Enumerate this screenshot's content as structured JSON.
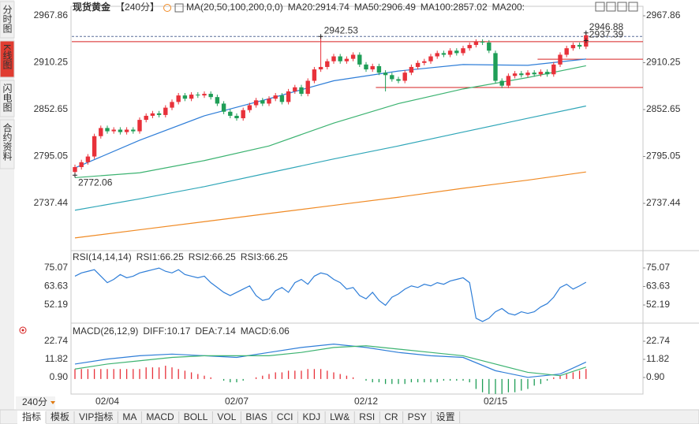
{
  "sidebar": {
    "tabs": [
      "分时图",
      "K线图",
      "闪电图",
      "合约资料"
    ],
    "active": 1
  },
  "toolbar": {
    "period": "240分",
    "tabs": [
      "指标",
      "模板",
      "VIP指标",
      "MA",
      "MACD",
      "BOLL",
      "VOL",
      "BIAS",
      "CCI",
      "KDJ",
      "LW&",
      "RSI",
      "CR",
      "PSY",
      "设置"
    ],
    "active": 0
  },
  "chart_data": [
    {
      "type": "candlestick",
      "title": "现货黄金",
      "subtitle": "【240分】",
      "indicator": "MA(20,50,100,200,0,0)",
      "categories": [
        null,
        null,
        null,
        null,
        null,
        "02/04",
        null,
        null,
        null,
        null,
        null,
        null,
        null,
        null,
        null,
        null,
        null,
        null,
        null,
        null,
        null,
        null,
        null,
        null,
        null,
        "02/07",
        null,
        null,
        null,
        null,
        null,
        null,
        null,
        null,
        null,
        null,
        null,
        null,
        null,
        null,
        null,
        null,
        null,
        null,
        null,
        "02/12",
        null,
        null,
        null,
        null,
        null,
        null,
        null,
        null,
        null,
        null,
        null,
        null,
        null,
        null,
        null,
        null,
        null,
        null,
        null,
        "02/15",
        null,
        null,
        null,
        null,
        null,
        null,
        null,
        null,
        null,
        null,
        null,
        null,
        null,
        null
      ],
      "open": [
        2776,
        2782,
        2788,
        2795,
        2820,
        2830,
        2826,
        2828,
        2825,
        2828,
        2826,
        2840,
        2845,
        2848,
        2846,
        2855,
        2862,
        2870,
        2866,
        2871,
        2870,
        2872,
        2868,
        2860,
        2850,
        2845,
        2842,
        2852,
        2858,
        2864,
        2860,
        2866,
        2870,
        2862,
        2875,
        2880,
        2872,
        2888,
        2902,
        2905,
        2912,
        2918,
        2912,
        2915,
        2920,
        2908,
        2902,
        2906,
        2898,
        2895,
        2890,
        2888,
        2898,
        2905,
        2910,
        2912,
        2918,
        2922,
        2920,
        2925,
        2922,
        2928,
        2932,
        2936,
        2935,
        2922,
        2888,
        2882,
        2894,
        2897,
        2895,
        2898,
        2896,
        2899,
        2896,
        2908,
        2920,
        2928,
        2932,
        2930
      ],
      "high": [
        2785,
        2791,
        2798,
        2823,
        2833,
        2833,
        2831,
        2831,
        2831,
        2831,
        2843,
        2848,
        2851,
        2851,
        2858,
        2865,
        2873,
        2873,
        2874,
        2874,
        2875,
        2875,
        2871,
        2863,
        2853,
        2848,
        2855,
        2861,
        2867,
        2867,
        2869,
        2873,
        2873,
        2878,
        2883,
        2883,
        2891,
        2905,
        2942.53,
        2915,
        2921,
        2921,
        2918,
        2923,
        2923,
        2911,
        2909,
        2909,
        2901,
        2898,
        2893,
        2901,
        2908,
        2913,
        2915,
        2921,
        2925,
        2925,
        2928,
        2928,
        2931,
        2935,
        2939,
        2939,
        2938,
        2925,
        2891,
        2897,
        2900,
        2900,
        2901,
        2901,
        2902,
        2902,
        2911,
        2923,
        2931,
        2935,
        2935,
        2946.88
      ],
      "low": [
        2772.06,
        2779,
        2785,
        2792,
        2817,
        2823,
        2823,
        2822,
        2822,
        2823,
        2823,
        2837,
        2842,
        2843,
        2843,
        2852,
        2859,
        2863,
        2863,
        2867,
        2867,
        2865,
        2857,
        2847,
        2842,
        2839,
        2839,
        2849,
        2855,
        2857,
        2857,
        2863,
        2859,
        2859,
        2872,
        2869,
        2869,
        2885,
        2899,
        2902,
        2909,
        2909,
        2909,
        2912,
        2905,
        2899,
        2899,
        2895,
        2875,
        2887,
        2885,
        2885,
        2895,
        2902,
        2907,
        2909,
        2915,
        2917,
        2917,
        2919,
        2919,
        2925,
        2929,
        2932,
        2922,
        2885,
        2879,
        2879,
        2891,
        2892,
        2892,
        2893,
        2893,
        2893,
        2893,
        2905,
        2917,
        2925,
        2927,
        2927
      ],
      "close": [
        2782,
        2788,
        2795,
        2820,
        2830,
        2826,
        2828,
        2825,
        2828,
        2826,
        2840,
        2845,
        2848,
        2846,
        2855,
        2862,
        2870,
        2866,
        2871,
        2870,
        2872,
        2868,
        2860,
        2850,
        2845,
        2842,
        2852,
        2858,
        2864,
        2860,
        2866,
        2870,
        2862,
        2875,
        2880,
        2872,
        2888,
        2902,
        2905,
        2912,
        2918,
        2912,
        2915,
        2920,
        2908,
        2902,
        2906,
        2898,
        2895,
        2890,
        2888,
        2898,
        2905,
        2910,
        2912,
        2918,
        2922,
        2920,
        2925,
        2922,
        2928,
        2932,
        2936,
        2935,
        2925,
        2888,
        2882,
        2894,
        2897,
        2895,
        2898,
        2896,
        2899,
        2896,
        2908,
        2920,
        2928,
        2932,
        2930,
        2944
      ],
      "up_color": "#e8313a",
      "down_color": "#1f9e57",
      "ylim": [
        2679.4,
        2979.5
      ],
      "yticks": [
        2967.86,
        2910.25,
        2852.65,
        2795.05,
        2737.44
      ],
      "lines": [
        {
          "name": "MA20",
          "label": "MA20:2914.74",
          "color": "#2f7ed8",
          "x": [
            0,
            10,
            20,
            30,
            40,
            50,
            60,
            70,
            79
          ],
          "values": [
            2781,
            2815,
            2845,
            2866,
            2888,
            2900,
            2908,
            2907,
            2914.74
          ]
        },
        {
          "name": "MA50",
          "label": "MA50:2906.49",
          "color": "#3cb371",
          "x": [
            0,
            10,
            20,
            30,
            40,
            50,
            60,
            70,
            79
          ],
          "values": [
            2769,
            2775,
            2790,
            2808,
            2836,
            2860,
            2878,
            2892,
            2906.49
          ]
        },
        {
          "name": "MA100",
          "label": "MA100:2857.02",
          "color": "#2fa6b8",
          "x": [
            0,
            10,
            20,
            30,
            40,
            50,
            60,
            70,
            79
          ],
          "values": [
            2729,
            2743,
            2758,
            2775,
            2792,
            2808,
            2825,
            2842,
            2857.02
          ]
        },
        {
          "name": "MA200",
          "label": "MA200:",
          "color": "#f08a24",
          "x": [
            0,
            10,
            20,
            30,
            40,
            50,
            60,
            70,
            79
          ],
          "values": [
            2695,
            2705,
            2715,
            2725,
            2735,
            2745,
            2756,
            2766,
            2776
          ]
        }
      ],
      "annotations": [
        {
          "text": "2942.53",
          "x": 38,
          "y": 2942.53,
          "color": "#e8313a"
        },
        {
          "text": "2946.88",
          "x": 79,
          "y": 2946.88,
          "color": "#e8313a"
        },
        {
          "text": "2937.39",
          "x": 79,
          "y": 2937.39,
          "color": "#e8313a"
        },
        {
          "text": "2772.06",
          "x": 0,
          "y": 2772.06,
          "color": "#3cb371"
        }
      ],
      "hlines": [
        {
          "value": 2942.53,
          "from": 0,
          "color": "#5a6f9a",
          "dashed": true
        },
        {
          "value": 2936,
          "from": 0,
          "color": "#d62020",
          "dashed": false
        },
        {
          "value": 2914.5,
          "from": 72,
          "color": "#d62020",
          "dashed": false
        },
        {
          "value": 2879.8,
          "from": 47,
          "color": "#d62020",
          "dashed": false
        }
      ]
    },
    {
      "type": "line",
      "title": "RSI(14,14,14)",
      "color": "#2f7ed8",
      "legend": [
        {
          "text": "RSI1:66.25",
          "color": "#2f7ed8"
        },
        {
          "text": "RSI2:66.25",
          "color": "#3cb371"
        },
        {
          "text": "RSI3:66.25",
          "color": "#2fa6b8"
        }
      ],
      "values": [
        70,
        72,
        73,
        74,
        70,
        66,
        68,
        71,
        69,
        70,
        72,
        73,
        74,
        75,
        73,
        72,
        74,
        71,
        70,
        69,
        70,
        66,
        63,
        60,
        58,
        60,
        62,
        64,
        58,
        55,
        56,
        61,
        63,
        60,
        66,
        68,
        65,
        70,
        72,
        71,
        68,
        66,
        62,
        63,
        58,
        56,
        60,
        55,
        52,
        57,
        59,
        62,
        64,
        63,
        65,
        64,
        66,
        65,
        67,
        68,
        69,
        66,
        44,
        42,
        44,
        48,
        50,
        47,
        46,
        48,
        47,
        48,
        51,
        53,
        57,
        63,
        65,
        62,
        64,
        66.25
      ],
      "ylim": [
        40.99,
        83.83
      ],
      "yticks": [
        75.07,
        63.63,
        52.19
      ]
    },
    {
      "type": "macd",
      "title": "MACD(26,12,9)",
      "x": [
        0,
        5,
        10,
        15,
        20,
        25,
        30,
        35,
        40,
        45,
        50,
        55,
        60,
        65,
        70,
        75,
        79
      ],
      "series": [
        {
          "name": "DIFF:10.17",
          "color": "#2f7ed8",
          "values": [
            9,
            12,
            14,
            15,
            14,
            13,
            16,
            19,
            21,
            19,
            16,
            14,
            13,
            5,
            1,
            3,
            10.17
          ]
        },
        {
          "name": "DEA:7.14",
          "color": "#3cb371",
          "values": [
            6,
            9,
            11,
            13,
            14,
            14,
            14,
            16,
            19,
            20,
            18,
            16,
            14,
            9,
            4,
            2,
            7.14
          ]
        }
      ],
      "histogram": {
        "name": "MACD:6.06",
        "color": "#6c63c9",
        "up_color": "#e8313a",
        "down_color": "#1f9e57",
        "values": [
          6,
          6,
          6,
          6,
          6,
          6,
          6,
          6,
          6,
          6,
          6,
          7,
          7,
          7,
          8,
          7,
          6,
          5,
          4,
          3,
          2,
          1,
          0,
          -1,
          -2,
          -2,
          -1,
          0,
          1,
          2,
          3,
          4,
          4,
          5,
          5,
          5,
          6,
          6,
          6,
          5,
          4,
          3,
          2,
          1,
          0,
          -1,
          -2,
          -2,
          -3,
          -3,
          -3,
          -3,
          -2,
          -2,
          -2,
          -2,
          -2,
          -1,
          -1,
          -1,
          -1,
          -2,
          -6,
          -8,
          -9,
          -9,
          -9,
          -8,
          -8,
          -7,
          -6,
          -4,
          -3,
          -1,
          1,
          2,
          3,
          4,
          5,
          6.06
        ]
      },
      "ylim": [
        -11.92,
        31.76
      ],
      "yticks": [
        22.74,
        11.82,
        {
          "value": 0.9,
          "label": "0.90"
        }
      ]
    }
  ]
}
